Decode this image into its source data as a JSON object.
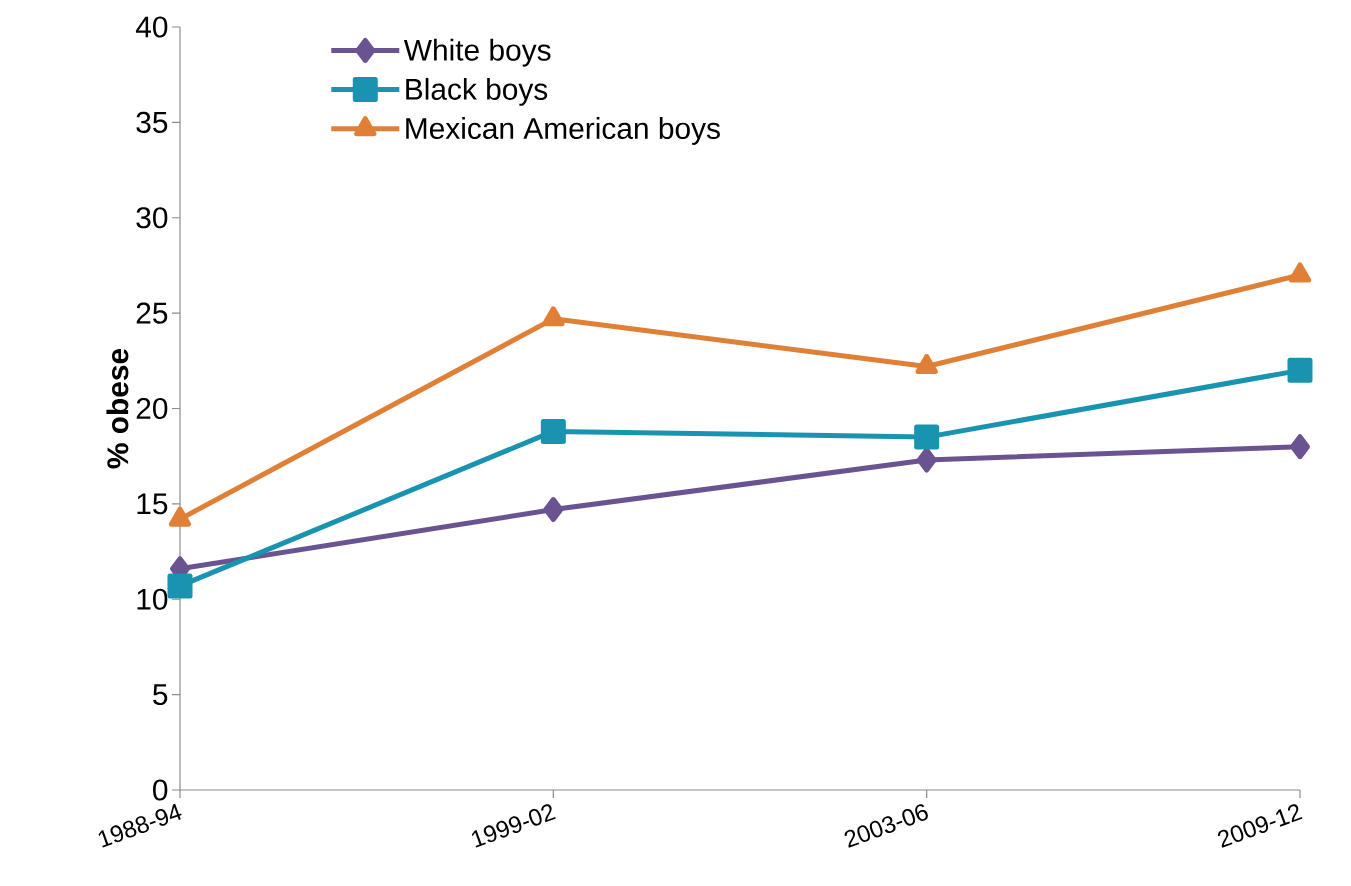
{
  "chart_data": {
    "type": "line",
    "ylabel": "% obese",
    "categories": [
      "1988-94",
      "1999-02",
      "2003-06",
      "2009-12"
    ],
    "series": [
      {
        "name": "White boys",
        "color": "#6a5391",
        "marker": "diamond",
        "values": [
          11.6,
          14.7,
          17.3,
          18.0
        ]
      },
      {
        "name": "Black boys",
        "color": "#1a93b0",
        "marker": "square",
        "values": [
          10.7,
          18.8,
          18.5,
          22.0
        ]
      },
      {
        "name": "Mexican American boys",
        "color": "#e07f36",
        "marker": "triangle",
        "values": [
          14.2,
          24.7,
          22.2,
          27.0
        ]
      }
    ],
    "ylim": [
      0,
      40
    ],
    "yticks": [
      0,
      5,
      10,
      15,
      20,
      25,
      30,
      35,
      40
    ],
    "grid": false,
    "legend": "top left",
    "line_style": "solid"
  }
}
